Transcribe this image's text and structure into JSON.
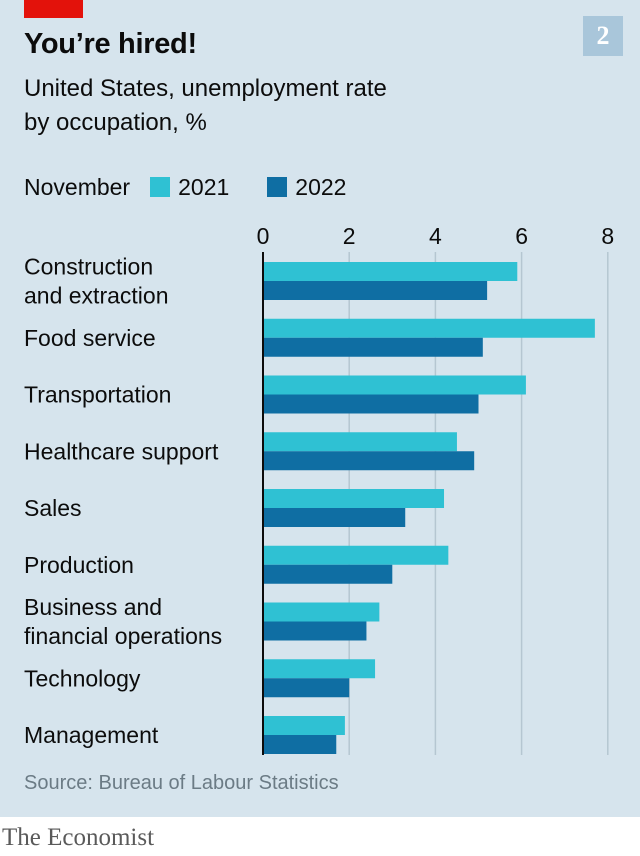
{
  "header": {
    "title": "You’re hired!",
    "subtitle_line1": "United States, unemployment rate",
    "subtitle_line2": "by occupation, %",
    "chart_number": "2"
  },
  "legend": {
    "prefix": "November",
    "items": [
      {
        "label": "2021",
        "color": "#2fc1d3"
      },
      {
        "label": "2022",
        "color": "#0f6ea3"
      }
    ]
  },
  "footer": {
    "source": "Source: Bureau of Labour Statistics",
    "brand": "The Economist"
  },
  "chart_data": {
    "type": "bar",
    "orientation": "horizontal",
    "categories": [
      [
        "Construction",
        "and extraction"
      ],
      [
        "Food service"
      ],
      [
        "Transportation"
      ],
      [
        "Healthcare support"
      ],
      [
        "Sales"
      ],
      [
        "Production"
      ],
      [
        "Business and",
        "financial operations"
      ],
      [
        "Technology"
      ],
      [
        "Management"
      ]
    ],
    "series": [
      {
        "name": "2021",
        "color": "#2fc1d3",
        "values": [
          5.9,
          7.7,
          6.1,
          4.5,
          4.2,
          4.3,
          2.7,
          2.6,
          1.9
        ]
      },
      {
        "name": "2022",
        "color": "#0f6ea3",
        "values": [
          5.2,
          5.1,
          5.0,
          4.9,
          3.3,
          3.0,
          2.4,
          2.0,
          1.7
        ]
      }
    ],
    "xlim": [
      0,
      8
    ],
    "xticks": [
      0,
      2,
      4,
      6,
      8
    ],
    "tick_labels_position": "top",
    "grid": "vertical",
    "legend_placement": "top-left"
  }
}
